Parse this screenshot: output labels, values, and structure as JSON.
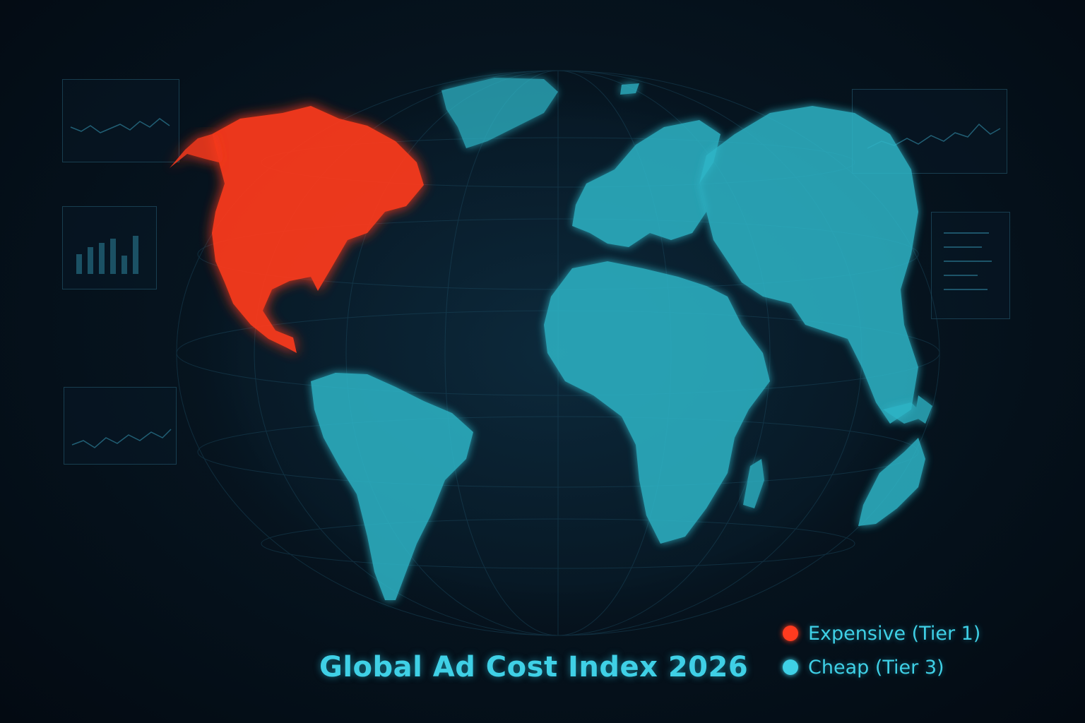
{
  "title": "Global Ad Cost Index 2026",
  "legend": [
    {
      "label": "Expensive (Tier 1)",
      "color": "#ff3b1f",
      "icon": "red-dot-icon"
    },
    {
      "label": "Cheap (Tier 3)",
      "color": "#3fd0e6",
      "icon": "cyan-dot-icon"
    }
  ],
  "regions": [
    {
      "name": "north-america",
      "tier": "Expensive (Tier 1)",
      "color": "#ff3b1f"
    },
    {
      "name": "south-america",
      "tier": "Cheap (Tier 3)",
      "color": "#2fb6c8"
    },
    {
      "name": "europe",
      "tier": "Cheap (Tier 3)",
      "color": "#2fb6c8"
    },
    {
      "name": "africa",
      "tier": "Cheap (Tier 3)",
      "color": "#2fb6c8"
    },
    {
      "name": "asia",
      "tier": "Cheap (Tier 3)",
      "color": "#2fb6c8"
    },
    {
      "name": "australia",
      "tier": "Cheap (Tier 3)",
      "color": "#2fb6c8"
    },
    {
      "name": "greenland",
      "tier": "Cheap (Tier 3)",
      "color": "#2fb6c8"
    }
  ]
}
